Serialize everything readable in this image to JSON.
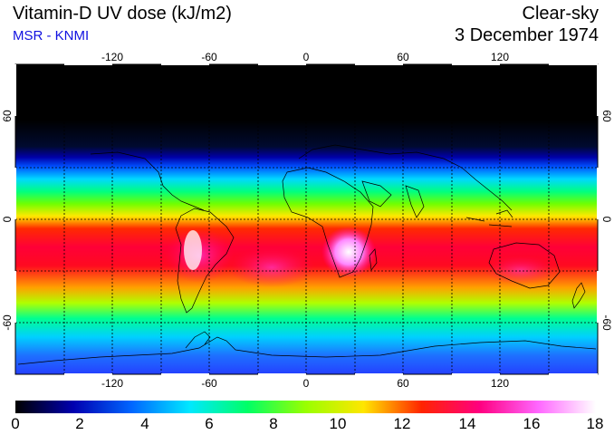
{
  "header": {
    "title": "Vitamin-D UV dose (kJ/m2)",
    "subtitle": "MSR - KNMI",
    "sky_condition": "Clear-sky",
    "date": "3 December 1974"
  },
  "map": {
    "projection": "equirectangular",
    "lon_ticks": [
      "-120",
      "-60",
      "0",
      "60",
      "120"
    ],
    "lat_ticks_left": [
      "60",
      "0",
      "-60"
    ],
    "lat_ticks_right": [
      "60",
      "0",
      "-60"
    ]
  },
  "colorbar": {
    "min": 0,
    "max": 18,
    "tick_labels": [
      "0",
      "2",
      "4",
      "6",
      "8",
      "10",
      "12",
      "14",
      "16",
      "18"
    ],
    "colors": [
      "#000000",
      "#0000b0",
      "#0066ff",
      "#00e8ff",
      "#00ff66",
      "#99ff00",
      "#ffe600",
      "#ff2400",
      "#ff0080",
      "#ff66ff",
      "#ffffff"
    ]
  }
}
